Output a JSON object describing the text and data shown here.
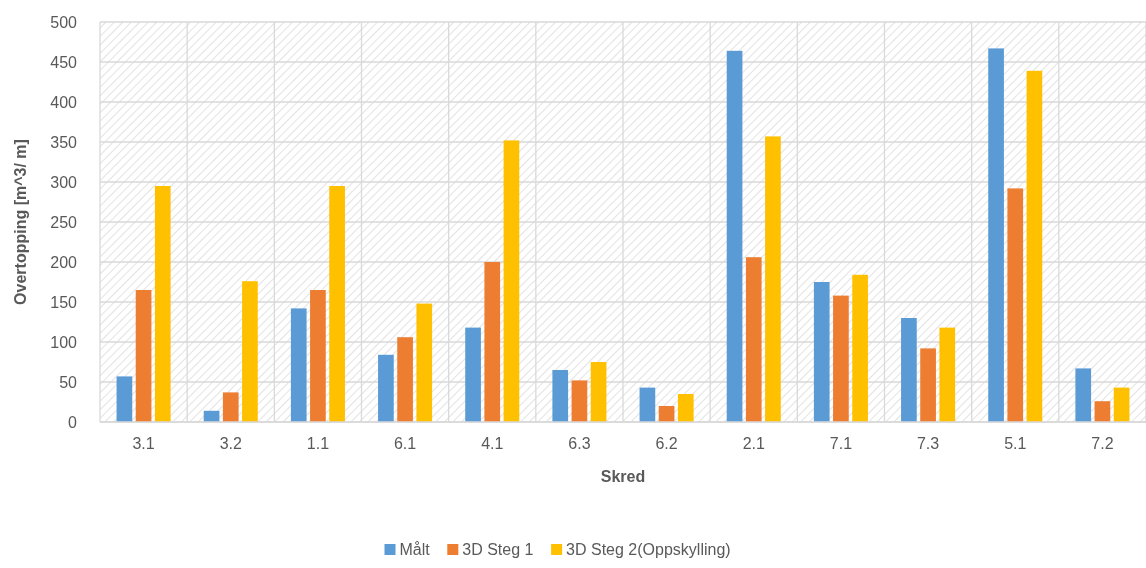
{
  "chart_data": {
    "type": "bar",
    "xlabel": "Skred",
    "ylabel": "Overtopping [m^3/ m]",
    "categories": [
      "3.1",
      "3.2",
      "1.1",
      "6.1",
      "4.1",
      "6.3",
      "6.2",
      "2.1",
      "7.1",
      "7.3",
      "5.1",
      "7.2"
    ],
    "series": [
      {
        "name": "Målt",
        "color": "#5b9bd5",
        "values": [
          57,
          14,
          142,
          84,
          118,
          65,
          43,
          464,
          175,
          130,
          467,
          67
        ]
      },
      {
        "name": "3D Steg 1",
        "color": "#ed7d31",
        "values": [
          165,
          37,
          165,
          106,
          200,
          52,
          20,
          206,
          158,
          92,
          292,
          26
        ]
      },
      {
        "name": "3D Steg 2(Oppskylling)",
        "color": "#ffc000",
        "values": [
          295,
          176,
          295,
          148,
          352,
          75,
          35,
          357,
          184,
          118,
          439,
          43
        ]
      }
    ],
    "ylim": [
      0,
      500
    ],
    "yticks": [
      0,
      50,
      100,
      150,
      200,
      250,
      300,
      350,
      400,
      450,
      500
    ],
    "grid": true,
    "legend": "bottom"
  }
}
